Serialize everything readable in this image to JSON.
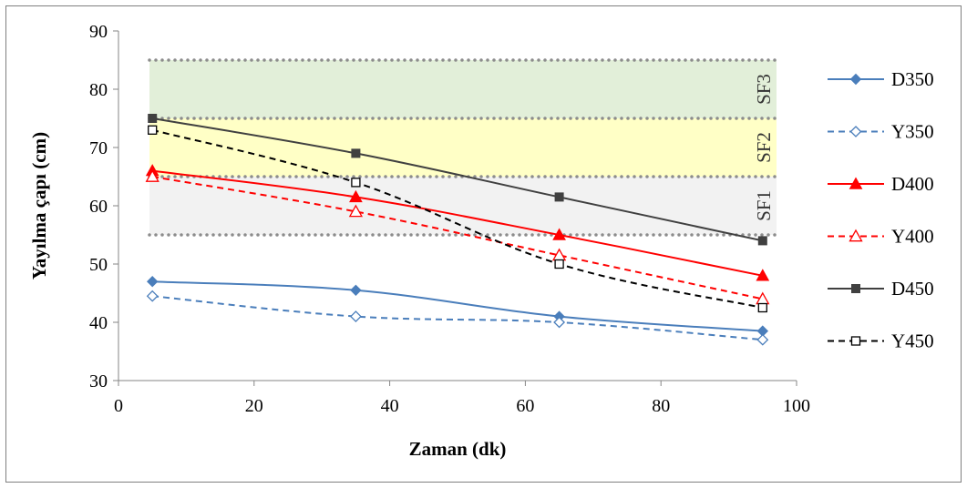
{
  "chart_data": {
    "type": "line",
    "title": "",
    "xlabel": "Zaman (dk)",
    "ylabel": "Yayılma çapı (cm)",
    "xlim": [
      0,
      100
    ],
    "ylim": [
      30,
      90
    ],
    "xticks": [
      "0",
      "20",
      "40",
      "60",
      "80",
      "100"
    ],
    "yticks": [
      "30",
      "40",
      "50",
      "60",
      "70",
      "80",
      "90"
    ],
    "grid": false,
    "legend_position": "right",
    "x": [
      5,
      35,
      65,
      95
    ],
    "bands": [
      {
        "label": "SF1",
        "from": 55,
        "to": 65,
        "color": "#f2f2f2"
      },
      {
        "label": "SF2",
        "from": 65,
        "to": 75,
        "color": "#ffffc6"
      },
      {
        "label": "SF3",
        "from": 75,
        "to": 85,
        "color": "#e2efd9"
      }
    ],
    "series": [
      {
        "name": "D350",
        "values": [
          47,
          45.5,
          41,
          38.5
        ],
        "color": "#4a7ebb",
        "dash": false,
        "marker": "diamond",
        "filled": true
      },
      {
        "name": "Y350",
        "values": [
          44.5,
          41,
          40,
          37
        ],
        "color": "#4a7ebb",
        "dash": true,
        "marker": "diamond",
        "filled": false
      },
      {
        "name": "D400",
        "values": [
          66,
          61.5,
          55,
          48
        ],
        "color": "#ff0000",
        "dash": false,
        "marker": "triangle",
        "filled": true
      },
      {
        "name": "Y400",
        "values": [
          65,
          59,
          51.5,
          44
        ],
        "color": "#ff0000",
        "dash": true,
        "marker": "triangle",
        "filled": false
      },
      {
        "name": "D450",
        "values": [
          75,
          69,
          61.5,
          54
        ],
        "color": "#404040",
        "dash": false,
        "marker": "square",
        "filled": true
      },
      {
        "name": "Y450",
        "values": [
          73,
          64,
          50,
          42.5
        ],
        "color": "#000000",
        "dash": true,
        "marker": "square",
        "filled": false
      }
    ]
  }
}
